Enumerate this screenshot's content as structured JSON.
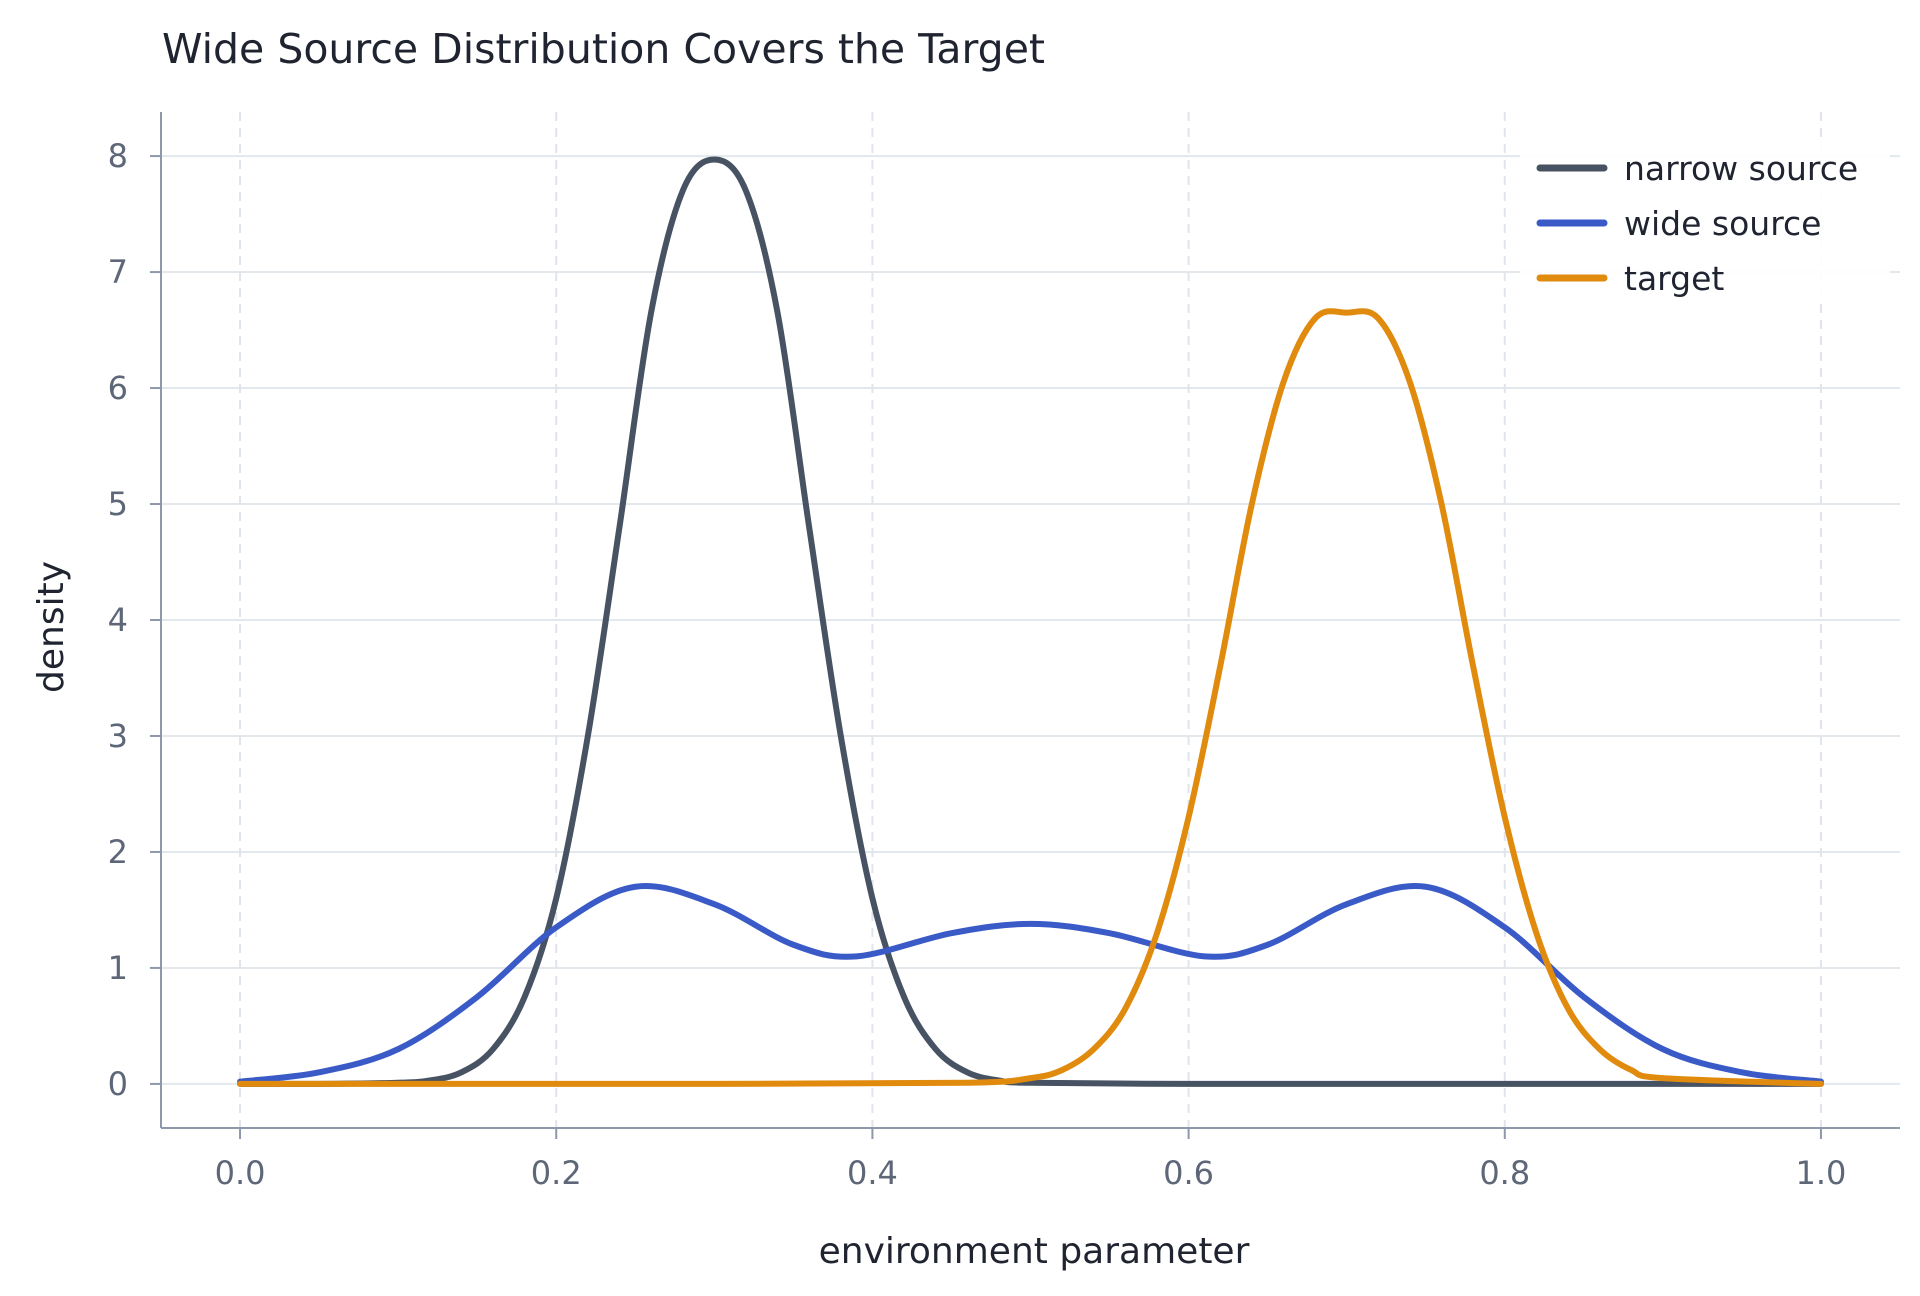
{
  "chart_data": {
    "type": "line",
    "title": "Wide Source Distribution Covers the Target",
    "xlabel": "environment parameter",
    "ylabel": "density",
    "xlim": [
      -0.05,
      1.05
    ],
    "ylim": [
      -0.38,
      8.38
    ],
    "x_ticks": [
      0.0,
      0.2,
      0.4,
      0.6,
      0.8,
      1.0
    ],
    "x_tick_labels": [
      "0.0",
      "0.2",
      "0.4",
      "0.6",
      "0.8",
      "1.0"
    ],
    "y_ticks": [
      0,
      1,
      2,
      3,
      4,
      5,
      6,
      7,
      8
    ],
    "y_tick_labels": [
      "0",
      "1",
      "2",
      "3",
      "4",
      "5",
      "6",
      "7",
      "8"
    ],
    "grid": {
      "horizontal": true,
      "vertical": "dashed"
    },
    "legend_position": "top-right",
    "series": [
      {
        "name": "narrow source",
        "color": "#475263",
        "x": [
          0.0,
          0.05,
          0.1,
          0.12,
          0.14,
          0.16,
          0.18,
          0.2,
          0.22,
          0.24,
          0.26,
          0.28,
          0.3,
          0.32,
          0.34,
          0.36,
          0.38,
          0.4,
          0.42,
          0.44,
          0.46,
          0.48,
          0.5,
          0.6,
          0.7,
          0.8,
          0.9,
          1.0
        ],
        "y": [
          0.0,
          0.0,
          0.01,
          0.03,
          0.1,
          0.3,
          0.75,
          1.6,
          3.0,
          4.8,
          6.65,
          7.7,
          7.97,
          7.7,
          6.65,
          4.8,
          3.0,
          1.6,
          0.75,
          0.3,
          0.1,
          0.03,
          0.01,
          0.0,
          0.0,
          0.0,
          0.0,
          0.0
        ]
      },
      {
        "name": "wide source",
        "color": "#3a5bc7",
        "x": [
          0.0,
          0.05,
          0.1,
          0.15,
          0.2,
          0.25,
          0.3,
          0.35,
          0.39,
          0.45,
          0.5,
          0.55,
          0.61,
          0.65,
          0.7,
          0.75,
          0.8,
          0.85,
          0.9,
          0.95,
          1.0
        ],
        "y": [
          0.02,
          0.1,
          0.3,
          0.75,
          1.35,
          1.7,
          1.55,
          1.2,
          1.1,
          1.3,
          1.38,
          1.3,
          1.1,
          1.2,
          1.55,
          1.7,
          1.35,
          0.75,
          0.3,
          0.1,
          0.02
        ]
      },
      {
        "name": "target",
        "color": "#e08a0e",
        "x": [
          0.0,
          0.3,
          0.46,
          0.5,
          0.52,
          0.54,
          0.56,
          0.58,
          0.6,
          0.62,
          0.64,
          0.66,
          0.68,
          0.7,
          0.72,
          0.74,
          0.76,
          0.78,
          0.8,
          0.82,
          0.84,
          0.86,
          0.88,
          0.9,
          1.0
        ],
        "y": [
          0.0,
          0.0,
          0.01,
          0.05,
          0.12,
          0.3,
          0.65,
          1.3,
          2.3,
          3.6,
          5.0,
          6.05,
          6.6,
          6.65,
          6.6,
          6.05,
          5.0,
          3.6,
          2.3,
          1.3,
          0.65,
          0.3,
          0.12,
          0.05,
          0.0
        ]
      }
    ]
  }
}
